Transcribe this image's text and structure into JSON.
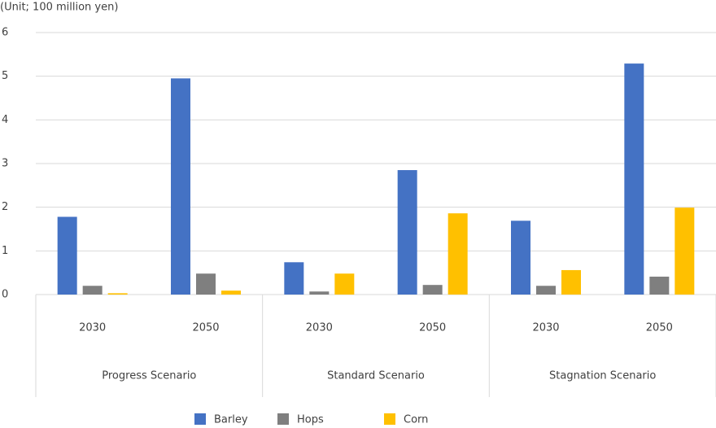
{
  "chart_data": {
    "type": "bar",
    "unit_label": "(Unit; 100 million yen)",
    "categories": [
      "2030",
      "2050",
      "2030",
      "2050",
      "2030",
      "2050"
    ],
    "groups": [
      "Progress Scenario",
      "Standard Scenario",
      "Stagnation Scenario"
    ],
    "series": [
      {
        "name": "Barley",
        "color": "#4472c4",
        "values": [
          1.78,
          4.95,
          0.74,
          2.85,
          1.69,
          5.29
        ]
      },
      {
        "name": "Hops",
        "color": "#7f7f7f",
        "values": [
          0.2,
          0.48,
          0.07,
          0.22,
          0.2,
          0.41
        ]
      },
      {
        "name": "Corn",
        "color": "#ffc000",
        "values": [
          0.03,
          0.09,
          0.48,
          1.86,
          0.56,
          1.99
        ]
      }
    ],
    "ylim": [
      0,
      6
    ],
    "yticks": [
      0,
      1,
      2,
      3,
      4,
      5,
      6
    ],
    "grid": true,
    "legend": "bottom"
  }
}
